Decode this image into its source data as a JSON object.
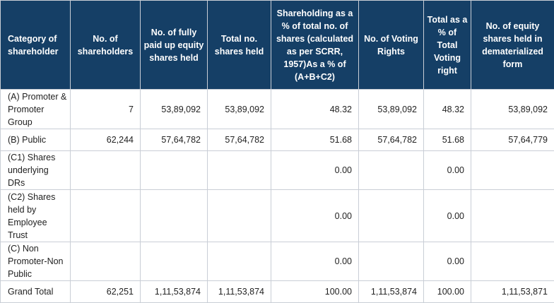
{
  "table": {
    "headers": [
      "Category of shareholder",
      "No. of shareholders",
      "No. of fully paid up equity shares held",
      "Total no. shares held",
      "Shareholding as a % of total no. of shares (calculated as per SCRR, 1957)As a % of (A+B+C2)",
      "No. of Voting Rights",
      "Total as a % of Total Voting right",
      "No. of equity shares held in dematerialized form"
    ],
    "rows": [
      [
        "(A) Promoter & Promoter Group",
        "7",
        "53,89,092",
        "53,89,092",
        "48.32",
        "53,89,092",
        "48.32",
        "53,89,092"
      ],
      [
        "(B) Public",
        "62,244",
        "57,64,782",
        "57,64,782",
        "51.68",
        "57,64,782",
        "51.68",
        "57,64,779"
      ],
      [
        "(C1) Shares underlying DRs",
        "",
        "",
        "",
        "0.00",
        "",
        "0.00",
        ""
      ],
      [
        "(C2) Shares held by Employee Trust",
        "",
        "",
        "",
        "0.00",
        "",
        "0.00",
        ""
      ],
      [
        "(C) Non Promoter-Non Public",
        "",
        "",
        "",
        "0.00",
        "",
        "0.00",
        ""
      ],
      [
        "Grand Total",
        "62,251",
        "1,11,53,874",
        "1,11,53,874",
        "100.00",
        "1,11,53,874",
        "100.00",
        "1,11,53,871"
      ]
    ]
  },
  "colors": {
    "header_bg": "#153f66",
    "header_text": "#ffffff",
    "border": "#c9ced6"
  }
}
